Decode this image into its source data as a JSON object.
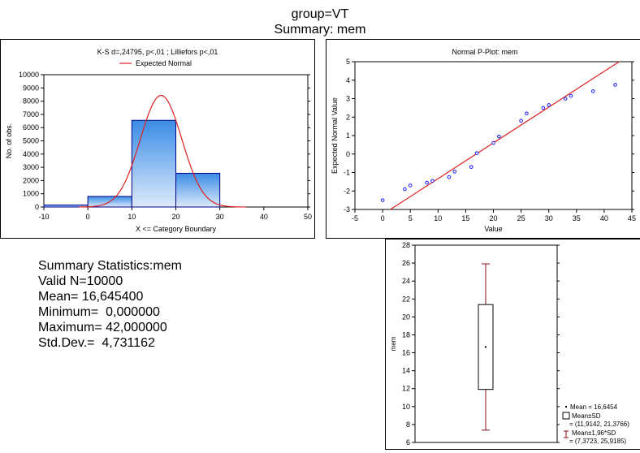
{
  "header": {
    "line1": "group=VT",
    "line2": "Summary: mem"
  },
  "colors": {
    "expected_curve": "#e02020",
    "bar_fill_light": "#dceafb",
    "bar_fill_dark": "#3a8ce6",
    "pplot_point": "#1a1aff",
    "pplot_line": "#e02020",
    "box_color": "#8b1010"
  },
  "chart_data": [
    {
      "type": "bar",
      "title": "K-S d=,24795, p<,01 ; Lilliefors p<,01",
      "legend": [
        "Expected Normal"
      ],
      "xlabel": "X <= Category Boundary",
      "ylabel": "No. of obs.",
      "xticks": [
        -10,
        0,
        10,
        20,
        30,
        40,
        50
      ],
      "yticks": [
        0,
        1000,
        2000,
        3000,
        4000,
        5000,
        6000,
        7000,
        8000,
        9000,
        10000
      ],
      "xlim": [
        -10,
        50
      ],
      "ylim": [
        0,
        10000
      ],
      "bins": [
        {
          "from": -10,
          "to": 0,
          "count": 150
        },
        {
          "from": 0,
          "to": 10,
          "count": 800
        },
        {
          "from": 10,
          "to": 20,
          "count": 6550
        },
        {
          "from": 20,
          "to": 30,
          "count": 2550
        }
      ],
      "expected_normal": {
        "mean": 16.6454,
        "sd": 4.731162,
        "n": 10000,
        "bin_width": 10
      }
    },
    {
      "type": "scatter",
      "title": "Normal P-Plot: mem",
      "xlabel": "Value",
      "ylabel": "Expected Normal Value",
      "xticks": [
        -5,
        0,
        5,
        10,
        15,
        20,
        25,
        30,
        35,
        40,
        45
      ],
      "yticks": [
        -3,
        -2,
        -1,
        0,
        1,
        2,
        3,
        4,
        5
      ],
      "xlim": [
        -5,
        45
      ],
      "ylim": [
        -3,
        5
      ],
      "points": [
        [
          0,
          -2.5
        ],
        [
          4,
          -1.9
        ],
        [
          5,
          -1.7
        ],
        [
          8,
          -1.55
        ],
        [
          9,
          -1.45
        ],
        [
          12,
          -1.25
        ],
        [
          13,
          -0.95
        ],
        [
          16,
          -0.7
        ],
        [
          17,
          0.05
        ],
        [
          20,
          0.6
        ],
        [
          21,
          0.95
        ],
        [
          25,
          1.8
        ],
        [
          26,
          2.2
        ],
        [
          29,
          2.5
        ],
        [
          30,
          2.65
        ],
        [
          33,
          3.0
        ],
        [
          34,
          3.15
        ],
        [
          38,
          3.4
        ],
        [
          42,
          3.75
        ]
      ],
      "fit_line": {
        "x1": 1.4,
        "y1": -3,
        "x2": 42.7,
        "y2": 5
      }
    },
    {
      "type": "box",
      "ylabel": "mem",
      "yticks": [
        6,
        8,
        10,
        12,
        14,
        16,
        18,
        20,
        22,
        24,
        26,
        28
      ],
      "ylim": [
        6,
        28
      ],
      "mean": 16.6454,
      "box": [
        11.9142,
        21.3766
      ],
      "whiskers": [
        7.3723,
        25.9185
      ],
      "legend": [
        "Mean = 16,6454",
        "Mean±SD",
        "= (11,9142, 21,3766)",
        "Mean±1,96*SD",
        "= (7,3723, 25,9185)"
      ]
    }
  ],
  "summary": {
    "title": "Summary Statistics:mem",
    "valid_n": "Valid N=10000",
    "mean": "Mean= 16,645400",
    "minimum": "Minimum=  0,000000",
    "maximum": "Maximum= 42,000000",
    "std_dev": "Std.Dev.=  4,731162"
  }
}
